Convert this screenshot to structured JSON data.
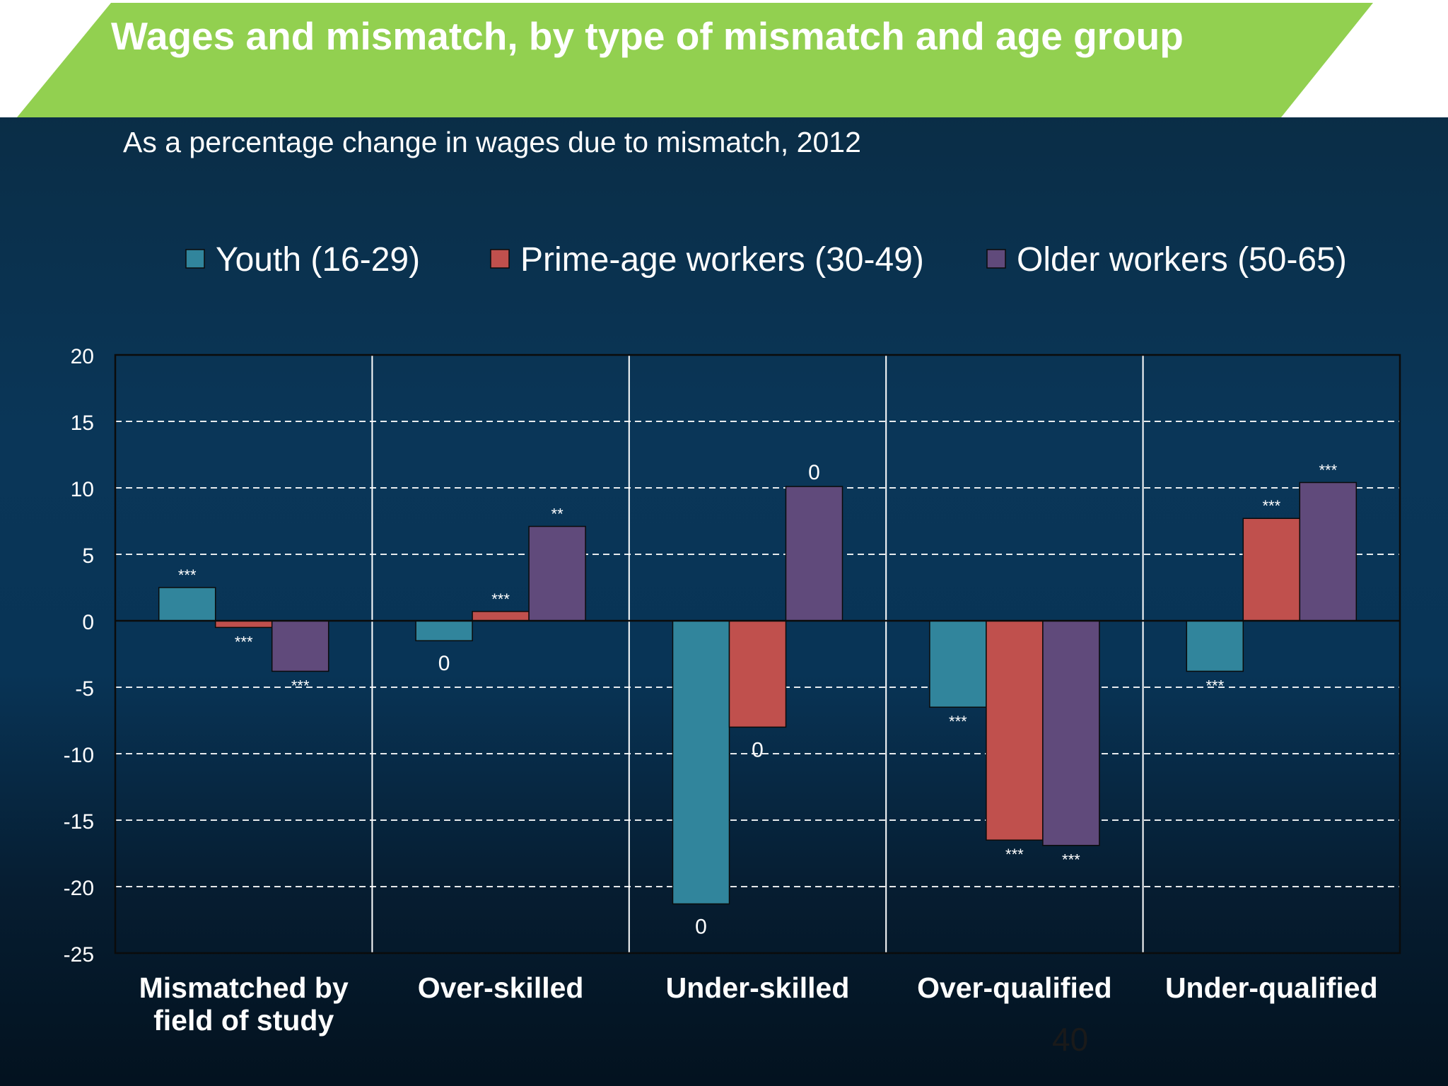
{
  "slide": {
    "title": "Wages and mismatch, by type of mismatch and age group",
    "subtitle": "As a percentage change in wages due to mismatch, 2012",
    "page_number": "40",
    "colors": {
      "title_band": "#92d050",
      "background": "#0a3658",
      "gridline": "#ffffff",
      "text": "#ffffff"
    }
  },
  "chart_data": {
    "type": "bar",
    "title": "",
    "xlabel": "",
    "ylabel": "",
    "ylim": [
      -25,
      20
    ],
    "yticks": [
      20,
      15,
      10,
      5,
      0,
      -5,
      -10,
      -15,
      -20,
      -25
    ],
    "grid": true,
    "legend_position": "top",
    "categories": [
      [
        "Mismatched by",
        "field of study"
      ],
      [
        "Over-skilled"
      ],
      [
        "Under-skilled"
      ],
      [
        "Over-qualified"
      ],
      [
        "Under-qualified"
      ]
    ],
    "series": [
      {
        "name": "Youth (16-29)",
        "color": "#31859c",
        "values": [
          2.5,
          -1.5,
          -21.3,
          -6.5,
          -3.8
        ],
        "labels": [
          "***",
          "0",
          "0",
          "***",
          "***"
        ]
      },
      {
        "name": "Prime-age workers (30-49)",
        "color": "#c0504d",
        "values": [
          -0.5,
          0.7,
          -8,
          -16.5,
          7.7
        ],
        "labels": [
          "***",
          "***",
          "0",
          "***",
          "***"
        ]
      },
      {
        "name": "Older workers (50-65)",
        "color": "#604a7b",
        "values": [
          -3.8,
          7.1,
          10.1,
          -16.9,
          10.4
        ],
        "labels": [
          "***",
          "**",
          "0",
          "***",
          "***"
        ]
      }
    ]
  }
}
